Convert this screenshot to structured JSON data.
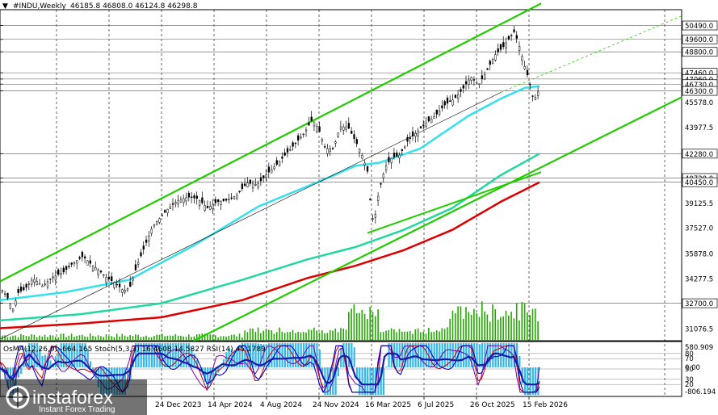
{
  "header": {
    "title": "#INDU,Weekly",
    "ohlc": "46185.8 46808.0 46124.8 46298.8"
  },
  "colors": {
    "channel": "#22cc00",
    "ma_fast": "#33e0ee",
    "ma_mid": "#22d8a0",
    "ma_slow": "#dd0000",
    "volume": "#22aa00",
    "osma": "#33b8e8",
    "stoch_main": "#0000cc",
    "stoch_signal": "#cc0000",
    "rsi": "#7700aa"
  },
  "price_labels": [
    {
      "text": "50490.0",
      "value": 50490,
      "boxed": true
    },
    {
      "text": "49600.0",
      "value": 49600,
      "boxed": true
    },
    {
      "text": "48800.0",
      "value": 48800,
      "boxed": true
    },
    {
      "text": "47460.0",
      "value": 47460,
      "boxed": true
    },
    {
      "text": "47060.0",
      "value": 47060,
      "boxed": true
    },
    {
      "text": "46730.0",
      "value": 46730,
      "boxed": true
    },
    {
      "text": "46300.0",
      "value": 46300,
      "boxed": true
    },
    {
      "text": "45578.0",
      "value": 45578,
      "boxed": false
    },
    {
      "text": "43977.5",
      "value": 43977.5,
      "boxed": false
    },
    {
      "text": "42280.0",
      "value": 42280,
      "boxed": true
    },
    {
      "text": "40720.0",
      "value": 40720,
      "boxed": true
    },
    {
      "text": "40450.0",
      "value": 40450,
      "boxed": true
    },
    {
      "text": "39125.5",
      "value": 39125.5,
      "boxed": false
    },
    {
      "text": "37527.0",
      "value": 37527,
      "boxed": false
    },
    {
      "text": "35878.0",
      "value": 35878,
      "boxed": false
    },
    {
      "text": "34277.5",
      "value": 34277.5,
      "boxed": false
    },
    {
      "text": "32700.0",
      "value": 32700,
      "boxed": true
    },
    {
      "text": "31076.5",
      "value": 31076.5,
      "boxed": false
    }
  ],
  "dates": [
    "24 Dec 2023",
    "14 Apr 2024",
    "4 Aug 2024",
    "24 Nov 2024",
    "16 Mar 2025",
    "6 Jul 2025",
    "26 Oct 2025",
    "15 Feb 2026"
  ],
  "indicator": {
    "text": "OsMA(12,26,9) -664.165  Stoch(5,3,3) 16.4608 14.5827  RSI(14) 45.1789",
    "labels": [
      {
        "text": "580.909",
        "value": 580.909
      },
      {
        "text": "80",
        "value": 80
      },
      {
        "text": "70",
        "value": 70
      },
      {
        "text": "50",
        "value": 50
      },
      {
        "text": "0.00",
        "value": 0
      },
      {
        "text": "30",
        "value": 30
      },
      {
        "text": "20",
        "value": 20
      },
      {
        "text": "-806.194",
        "value": -806.194
      }
    ]
  },
  "brand": {
    "name": "instaforex",
    "tagline": "Instant Forex Trading"
  },
  "chart_data": {
    "type": "candlestick",
    "symbol": "#INDU",
    "timeframe": "Weekly",
    "ylim": [
      30300,
      51500
    ],
    "x_dates": [
      "24 Dec 2023",
      "14 Apr 2024",
      "4 Aug 2024",
      "24 Nov 2024",
      "16 Mar 2025",
      "6 Jul 2025",
      "26 Oct 2025",
      "15 Feb 2026"
    ],
    "close_path": [
      [
        0,
        33700
      ],
      [
        8,
        33100
      ],
      [
        15,
        32300
      ],
      [
        22,
        33400
      ],
      [
        30,
        33600
      ],
      [
        40,
        34300
      ],
      [
        52,
        33800
      ],
      [
        65,
        34400
      ],
      [
        78,
        34700
      ],
      [
        90,
        35300
      ],
      [
        102,
        35700
      ],
      [
        112,
        35200
      ],
      [
        122,
        34800
      ],
      [
        132,
        34300
      ],
      [
        142,
        34000
      ],
      [
        152,
        33500
      ],
      [
        160,
        33700
      ],
      [
        168,
        35000
      ],
      [
        178,
        36300
      ],
      [
        188,
        37600
      ],
      [
        198,
        38200
      ],
      [
        208,
        38800
      ],
      [
        220,
        39300
      ],
      [
        232,
        39500
      ],
      [
        244,
        39400
      ],
      [
        256,
        38800
      ],
      [
        268,
        39200
      ],
      [
        280,
        39300
      ],
      [
        292,
        39600
      ],
      [
        305,
        40400
      ],
      [
        318,
        40300
      ],
      [
        330,
        41000
      ],
      [
        342,
        41600
      ],
      [
        354,
        42300
      ],
      [
        366,
        43000
      ],
      [
        376,
        43600
      ],
      [
        386,
        44500
      ],
      [
        394,
        43800
      ],
      [
        402,
        42600
      ],
      [
        412,
        42600
      ],
      [
        420,
        44000
      ],
      [
        430,
        44000
      ],
      [
        438,
        43200
      ],
      [
        446,
        42400
      ],
      [
        454,
        41200
      ],
      [
        458,
        39000
      ],
      [
        462,
        37700
      ],
      [
        468,
        39800
      ],
      [
        476,
        41400
      ],
      [
        484,
        42000
      ],
      [
        494,
        42200
      ],
      [
        504,
        43100
      ],
      [
        514,
        43600
      ],
      [
        526,
        44200
      ],
      [
        538,
        44700
      ],
      [
        550,
        45400
      ],
      [
        562,
        45800
      ],
      [
        572,
        46400
      ],
      [
        582,
        47200
      ],
      [
        592,
        46700
      ],
      [
        602,
        47600
      ],
      [
        612,
        48600
      ],
      [
        622,
        49100
      ],
      [
        630,
        49700
      ],
      [
        636,
        50100
      ],
      [
        642,
        49200
      ],
      [
        648,
        48000
      ],
      [
        654,
        47000
      ],
      [
        660,
        45700
      ],
      [
        666,
        46300
      ]
    ],
    "ma_fast": [
      [
        0,
        32900
      ],
      [
        80,
        33400
      ],
      [
        160,
        34200
      ],
      [
        240,
        36400
      ],
      [
        320,
        38900
      ],
      [
        400,
        40600
      ],
      [
        440,
        41500
      ],
      [
        470,
        41700
      ],
      [
        520,
        42600
      ],
      [
        580,
        44700
      ],
      [
        620,
        45800
      ],
      [
        650,
        46500
      ],
      [
        668,
        46600
      ]
    ],
    "ma_mid": [
      [
        0,
        31600
      ],
      [
        100,
        32000
      ],
      [
        200,
        32700
      ],
      [
        300,
        34200
      ],
      [
        380,
        35500
      ],
      [
        440,
        36300
      ],
      [
        500,
        37400
      ],
      [
        560,
        38800
      ],
      [
        620,
        40900
      ],
      [
        668,
        42280
      ]
    ],
    "ma_slow": [
      [
        0,
        31100
      ],
      [
        100,
        31400
      ],
      [
        200,
        31800
      ],
      [
        300,
        32900
      ],
      [
        380,
        34300
      ],
      [
        440,
        35100
      ],
      [
        500,
        36100
      ],
      [
        560,
        37400
      ],
      [
        620,
        39200
      ],
      [
        668,
        40450
      ]
    ],
    "indicator_values": {
      "osma": -664.165,
      "stoch_main": 16.4608,
      "stoch_signal": 14.5827,
      "rsi": 45.1789
    }
  }
}
